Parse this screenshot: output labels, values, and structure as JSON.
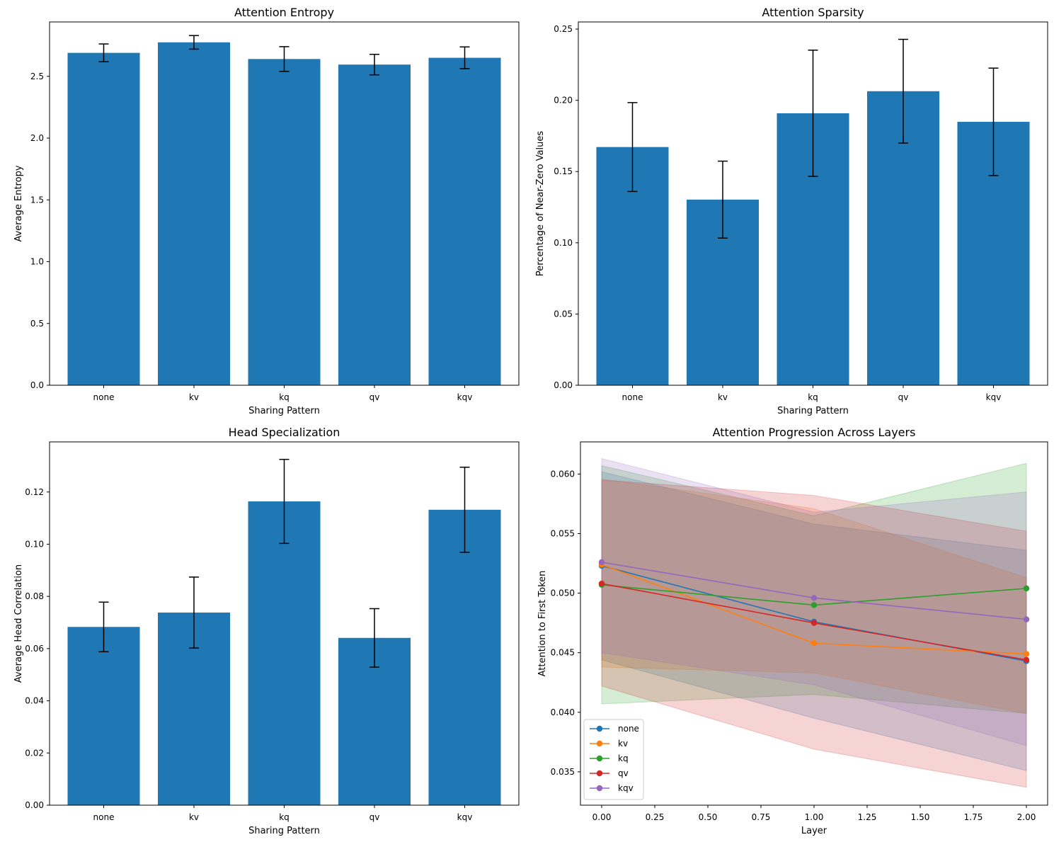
{
  "chart_data": [
    {
      "type": "bar",
      "title": "Attention Entropy",
      "xlabel": "Sharing Pattern",
      "ylabel": "Average Entropy",
      "categories": [
        "none",
        "kv",
        "kq",
        "qv",
        "kqv"
      ],
      "values": [
        2.69,
        2.775,
        2.64,
        2.595,
        2.65
      ],
      "errors": [
        0.072,
        0.055,
        0.1,
        0.083,
        0.088
      ],
      "ylim": [
        0,
        2.94
      ],
      "yticks": [
        0.0,
        0.5,
        1.0,
        1.5,
        2.0,
        2.5
      ],
      "ytick_labels": [
        "0.0",
        "0.5",
        "1.0",
        "1.5",
        "2.0",
        "2.5"
      ],
      "bar_color": "#1f77b4",
      "grid": false
    },
    {
      "type": "bar",
      "title": "Attention Sparsity",
      "xlabel": "Sharing Pattern",
      "ylabel": "Percentage of Near-Zero Values",
      "categories": [
        "none",
        "kv",
        "kq",
        "qv",
        "kqv"
      ],
      "values": [
        0.1672,
        0.1303,
        0.1909,
        0.2064,
        0.1849
      ],
      "errors": [
        0.0312,
        0.027,
        0.0443,
        0.0364,
        0.0377
      ],
      "ylim": [
        0,
        0.255
      ],
      "yticks": [
        0.0,
        0.05,
        0.1,
        0.15,
        0.2,
        0.25
      ],
      "ytick_labels": [
        "0.00",
        "0.05",
        "0.10",
        "0.15",
        "0.20",
        "0.25"
      ],
      "bar_color": "#1f77b4",
      "grid": false
    },
    {
      "type": "bar",
      "title": "Head Specialization",
      "xlabel": "Sharing Pattern",
      "ylabel": "Average Head Correlation",
      "categories": [
        "none",
        "kv",
        "kq",
        "qv",
        "kqv"
      ],
      "values": [
        0.0683,
        0.0738,
        0.1164,
        0.0641,
        0.1132
      ],
      "errors": [
        0.0095,
        0.0136,
        0.0161,
        0.0112,
        0.0163
      ],
      "ylim": [
        0,
        0.1392
      ],
      "yticks": [
        0.0,
        0.02,
        0.04,
        0.06,
        0.08,
        0.1,
        0.12
      ],
      "ytick_labels": [
        "0.00",
        "0.02",
        "0.04",
        "0.06",
        "0.08",
        "0.10",
        "0.12"
      ],
      "bar_color": "#1f77b4",
      "grid": false
    },
    {
      "type": "line",
      "title": "Attention Progression Across Layers",
      "xlabel": "Layer",
      "ylabel": "Attention to First Token",
      "x": [
        0,
        1,
        2
      ],
      "xlim": [
        -0.1,
        2.1
      ],
      "ylim": [
        0.0322,
        0.0627
      ],
      "xticks": [
        0.0,
        0.25,
        0.5,
        0.75,
        1.0,
        1.25,
        1.5,
        1.75,
        2.0
      ],
      "xtick_labels": [
        "0.00",
        "0.25",
        "0.50",
        "0.75",
        "1.00",
        "1.25",
        "1.50",
        "1.75",
        "2.00"
      ],
      "yticks": [
        0.035,
        0.04,
        0.045,
        0.05,
        0.055,
        0.06
      ],
      "ytick_labels": [
        "0.035",
        "0.040",
        "0.045",
        "0.050",
        "0.055",
        "0.060"
      ],
      "legend": "lower-left",
      "grid": false,
      "series": [
        {
          "name": "none",
          "color": "#1f77b4",
          "values": [
            0.0523,
            0.0476,
            0.0443
          ],
          "lower": [
            0.0444,
            0.0395,
            0.0351
          ],
          "upper": [
            0.0602,
            0.0558,
            0.0536
          ]
        },
        {
          "name": "kv",
          "color": "#ff7f0e",
          "values": [
            0.0524,
            0.0458,
            0.0449
          ],
          "lower": [
            0.0438,
            0.0433,
            0.0399
          ],
          "upper": [
            0.0596,
            0.0571,
            0.0513
          ]
        },
        {
          "name": "kq",
          "color": "#2ca02c",
          "values": [
            0.0507,
            0.049,
            0.0504
          ],
          "lower": [
            0.0407,
            0.0415,
            0.0399
          ],
          "upper": [
            0.0607,
            0.0565,
            0.0609
          ]
        },
        {
          "name": "qv",
          "color": "#d62728",
          "values": [
            0.0508,
            0.0475,
            0.0444
          ],
          "lower": [
            0.0422,
            0.0369,
            0.0337
          ],
          "upper": [
            0.0595,
            0.0582,
            0.0552
          ]
        },
        {
          "name": "kqv",
          "color": "#9467bd",
          "values": [
            0.0526,
            0.0496,
            0.0478
          ],
          "lower": [
            0.045,
            0.0423,
            0.0372
          ],
          "upper": [
            0.0613,
            0.0568,
            0.0585
          ]
        }
      ]
    }
  ]
}
